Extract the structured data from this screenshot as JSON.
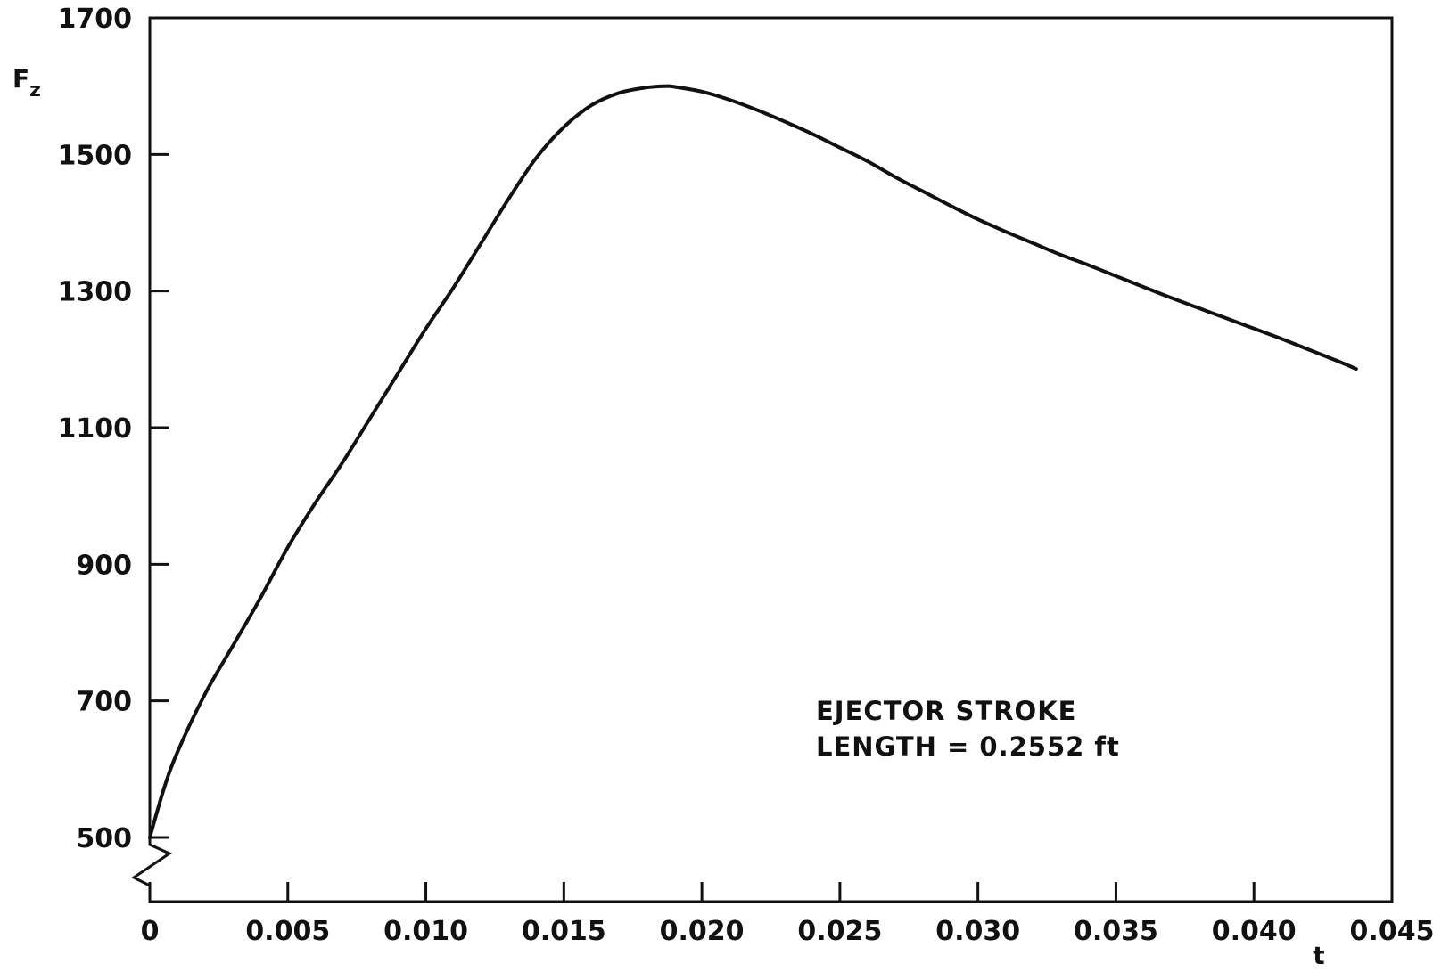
{
  "chart_data": {
    "type": "line",
    "title": "",
    "xlabel": "t",
    "ylabel": "F",
    "ylabel_subscript": "z",
    "xlim": [
      0,
      0.045
    ],
    "ylim": [
      450,
      1700
    ],
    "y_axis_break": true,
    "grid": false,
    "x_ticks": [
      0,
      0.005,
      0.01,
      0.015,
      0.02,
      0.025,
      0.03,
      0.035,
      0.04,
      0.045
    ],
    "x_tick_labels": [
      "0",
      "0.005",
      "0.010",
      "0.015",
      "0.020",
      "0.025",
      "0.030",
      "0.035",
      "0.040",
      "0.045"
    ],
    "y_ticks": [
      500,
      700,
      900,
      1100,
      1300,
      1500,
      1700
    ],
    "y_tick_labels": [
      "500",
      "700",
      "900",
      "1100",
      "1300",
      "1500",
      "1700"
    ],
    "annotations": [
      "EJECTOR  STROKE",
      "LENGTH = 0.2552 ft"
    ],
    "series": [
      {
        "x": [
          0,
          0.0005,
          0.001,
          0.002,
          0.003,
          0.004,
          0.005,
          0.006,
          0.007,
          0.008,
          0.009,
          0.01,
          0.011,
          0.012,
          0.013,
          0.014,
          0.015,
          0.016,
          0.017,
          0.018,
          0.0187,
          0.019,
          0.02,
          0.021,
          0.022,
          0.023,
          0.024,
          0.025,
          0.026,
          0.027,
          0.028,
          0.029,
          0.03,
          0.031,
          0.032,
          0.033,
          0.034,
          0.035,
          0.036,
          0.037,
          0.038,
          0.039,
          0.04,
          0.041,
          0.042,
          0.043,
          0.0437
        ],
        "values": [
          500,
          570,
          625,
          710,
          780,
          850,
          925,
          990,
          1050,
          1115,
          1180,
          1245,
          1305,
          1370,
          1435,
          1495,
          1540,
          1572,
          1590,
          1598,
          1600,
          1599,
          1592,
          1580,
          1565,
          1548,
          1530,
          1510,
          1490,
          1467,
          1446,
          1425,
          1405,
          1387,
          1370,
          1353,
          1338,
          1322,
          1306,
          1290,
          1275,
          1260,
          1245,
          1230,
          1214,
          1198,
          1186
        ]
      }
    ]
  }
}
